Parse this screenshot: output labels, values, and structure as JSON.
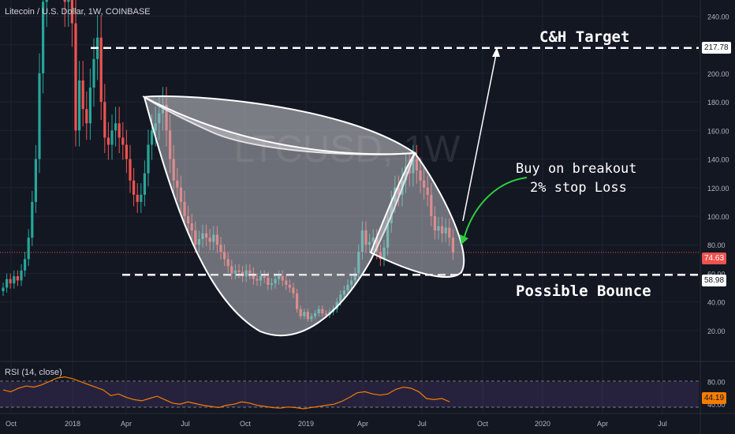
{
  "chart_data": {
    "type": "candlestick",
    "title": "Litecoin / U.S. Dollar, 1W, COINBASE",
    "watermark": "LTCUSD, 1W",
    "x_ticks": [
      "Oct",
      "2018",
      "Apr",
      "Jul",
      "Oct",
      "2019",
      "Apr",
      "Jul",
      "Oct",
      "2020",
      "Apr",
      "Jul"
    ],
    "y_ticks": [
      "240.00",
      "220.00",
      "200.00",
      "180.00",
      "160.00",
      "140.00",
      "120.00",
      "100.00",
      "80.00",
      "60.00",
      "40.00",
      "20.00"
    ],
    "ylim": [
      5,
      248
    ],
    "grid": true,
    "colors": {
      "up": "#26a69a",
      "down": "#ef5350",
      "background": "#131722",
      "grid": "#1e2331",
      "rsi": "#f57c00"
    },
    "candles_close": [
      50,
      56,
      53,
      58,
      55,
      62,
      70,
      85,
      110,
      140,
      200,
      250,
      300,
      280,
      330,
      355,
      300,
      250,
      260,
      235,
      160,
      195,
      175,
      165,
      190,
      210,
      225,
      180,
      155,
      150,
      160,
      165,
      155,
      150,
      140,
      125,
      115,
      110,
      115,
      130,
      150,
      160,
      165,
      172,
      178,
      160,
      140,
      125,
      120,
      110,
      100,
      95,
      90,
      80,
      84,
      88,
      85,
      82,
      87,
      80,
      75,
      70,
      65,
      60,
      62,
      61,
      58,
      62,
      60,
      56,
      55,
      58,
      57,
      52,
      53,
      56,
      58,
      55,
      52,
      50,
      46,
      35,
      30,
      33,
      28,
      30,
      32,
      35,
      32,
      31,
      33,
      35,
      40,
      45,
      48,
      52,
      55,
      60,
      75,
      90,
      80,
      82,
      85,
      75,
      70,
      78,
      95,
      110,
      120,
      115,
      125,
      135,
      130,
      140,
      132,
      125,
      120,
      115,
      100,
      90,
      93,
      88,
      92,
      85,
      74.63
    ],
    "levels": [
      {
        "label": "217.78",
        "value": 217.78,
        "color": "#ffffff"
      },
      {
        "label": "74.63",
        "value": 74.63,
        "color": "#ef5350"
      },
      {
        "label": "58.98",
        "value": 58.98,
        "color": "#ffffff"
      }
    ],
    "rsi": {
      "label": "RSI (14, close)",
      "y_ticks": [
        "80.00",
        "40.00"
      ],
      "last_label": "44.19",
      "values": [
        65,
        62,
        68,
        72,
        70,
        74,
        80,
        86,
        88,
        85,
        80,
        75,
        70,
        65,
        55,
        58,
        52,
        48,
        46,
        50,
        54,
        48,
        42,
        40,
        44,
        41,
        38,
        36,
        34,
        38,
        40,
        44,
        42,
        38,
        36,
        34,
        33,
        35,
        34,
        32,
        34,
        36,
        38,
        40,
        45,
        52,
        60,
        62,
        58,
        56,
        58,
        66,
        70,
        68,
        62,
        50,
        48,
        50,
        44.19
      ]
    },
    "annotations": {
      "target": "C&H Target",
      "buy_line1": "Buy on breakout",
      "buy_line2": "2% stop Loss",
      "bounce": "Possible Bounce"
    }
  }
}
